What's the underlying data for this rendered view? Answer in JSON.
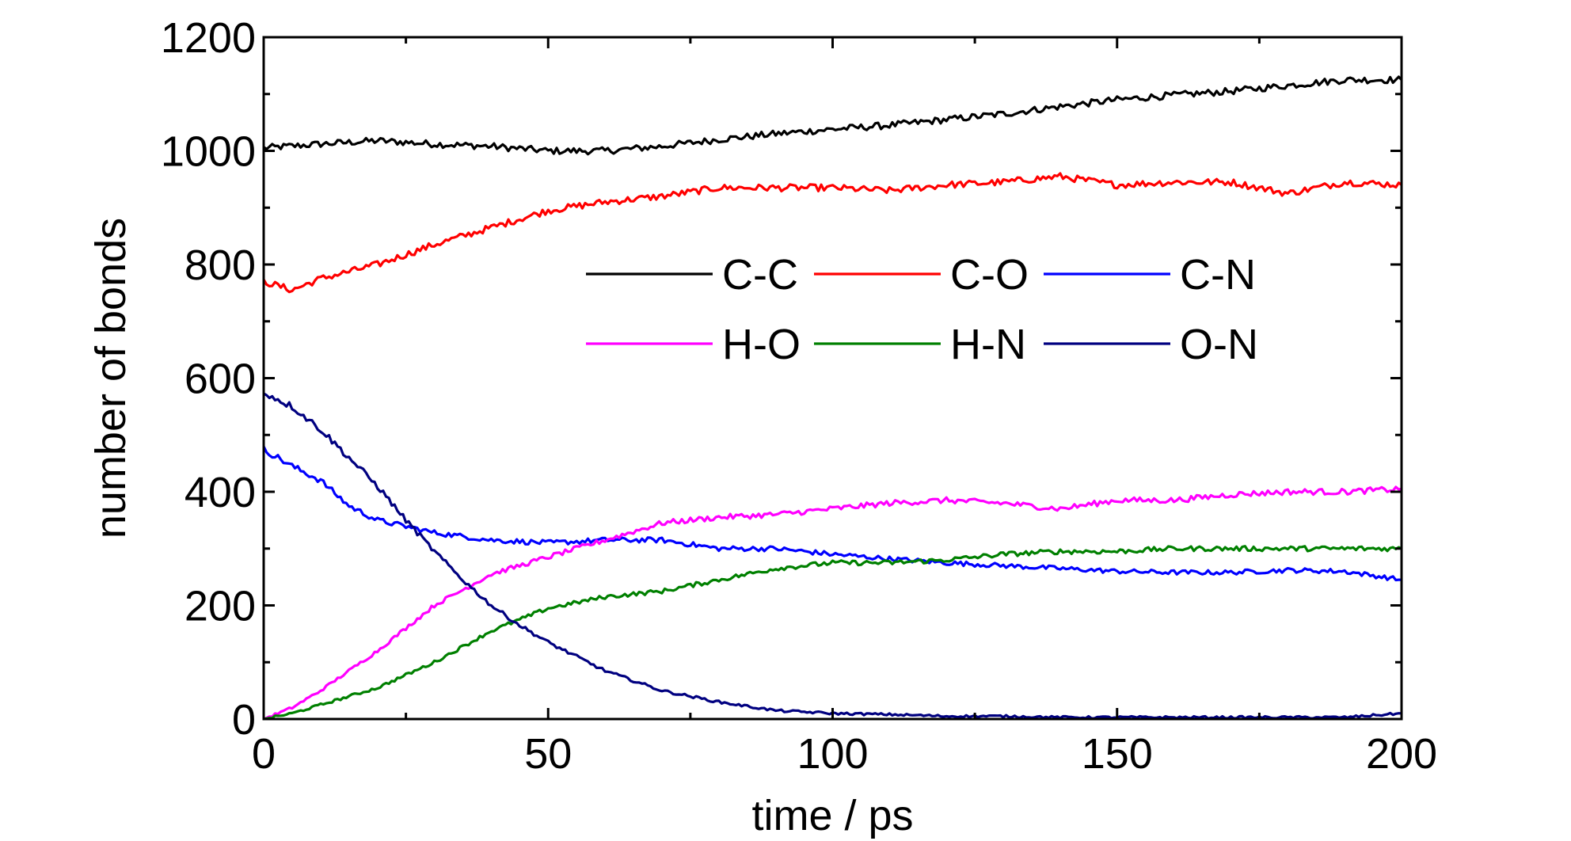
{
  "chart_data": {
    "type": "line",
    "title": "",
    "xlabel": "time / ps",
    "ylabel": "number of bonds",
    "xlim": [
      0,
      200
    ],
    "ylim": [
      0,
      1200
    ],
    "x_ticks": [
      "0",
      "50",
      "100",
      "150",
      "200"
    ],
    "y_ticks": [
      "0",
      "200",
      "400",
      "600",
      "800",
      "1000",
      "1200"
    ],
    "grid": false,
    "legend_position": "center-right, two rows of three",
    "series": [
      {
        "name": "C-C",
        "color": "#000000",
        "x": [
          0,
          10,
          20,
          30,
          40,
          50,
          60,
          70,
          80,
          90,
          100,
          110,
          120,
          130,
          140,
          150,
          160,
          170,
          180,
          190,
          200
        ],
        "y": [
          1005,
          1012,
          1018,
          1012,
          1008,
          1000,
          1000,
          1008,
          1020,
          1030,
          1038,
          1045,
          1055,
          1065,
          1078,
          1090,
          1098,
          1105,
          1115,
          1125,
          1125
        ]
      },
      {
        "name": "C-O",
        "color": "#ff0000",
        "x": [
          0,
          5,
          10,
          20,
          30,
          40,
          50,
          60,
          70,
          80,
          90,
          100,
          110,
          120,
          130,
          140,
          150,
          160,
          170,
          180,
          190,
          200
        ],
        "y": [
          770,
          755,
          775,
          800,
          835,
          865,
          895,
          910,
          920,
          935,
          935,
          935,
          930,
          940,
          945,
          955,
          940,
          945,
          945,
          925,
          945,
          940
        ]
      },
      {
        "name": "C-N",
        "color": "#0000ff",
        "x": [
          0,
          5,
          10,
          15,
          20,
          30,
          40,
          50,
          60,
          70,
          80,
          90,
          100,
          110,
          120,
          130,
          140,
          150,
          160,
          170,
          180,
          190,
          200
        ],
        "y": [
          475,
          445,
          420,
          375,
          350,
          328,
          315,
          310,
          315,
          315,
          300,
          300,
          290,
          282,
          275,
          270,
          265,
          260,
          258,
          258,
          262,
          260,
          245
        ]
      },
      {
        "name": "H-O",
        "color": "#ff00ff",
        "x": [
          0,
          5,
          10,
          20,
          30,
          40,
          50,
          60,
          70,
          80,
          90,
          100,
          110,
          120,
          130,
          140,
          150,
          160,
          170,
          180,
          190,
          200
        ],
        "y": [
          0,
          20,
          50,
          120,
          200,
          255,
          285,
          315,
          345,
          355,
          360,
          370,
          380,
          385,
          380,
          370,
          385,
          385,
          395,
          400,
          400,
          405
        ]
      },
      {
        "name": "H-N",
        "color": "#008000",
        "x": [
          0,
          5,
          10,
          20,
          30,
          40,
          50,
          60,
          70,
          80,
          90,
          100,
          110,
          120,
          130,
          140,
          150,
          160,
          170,
          180,
          190,
          200
        ],
        "y": [
          0,
          10,
          25,
          55,
          100,
          155,
          195,
          215,
          225,
          245,
          265,
          275,
          275,
          280,
          290,
          295,
          295,
          300,
          300,
          300,
          300,
          300
        ]
      },
      {
        "name": "O-N",
        "color": "#000080",
        "x": [
          0,
          5,
          10,
          15,
          20,
          25,
          30,
          35,
          40,
          45,
          50,
          55,
          60,
          70,
          80,
          90,
          100,
          110,
          120,
          130,
          140,
          150,
          160,
          170,
          180,
          190,
          200
        ],
        "y": [
          575,
          550,
          510,
          460,
          410,
          350,
          295,
          245,
          200,
          165,
          135,
          110,
          85,
          50,
          30,
          15,
          10,
          8,
          5,
          5,
          3,
          3,
          3,
          3,
          3,
          3,
          10
        ]
      }
    ]
  }
}
